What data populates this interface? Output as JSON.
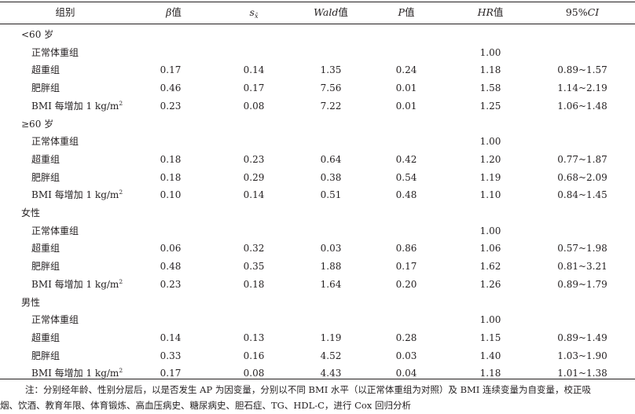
{
  "header": {
    "group": "组别",
    "beta_sym": "β",
    "beta_suffix": "值",
    "sx_main": "s",
    "sx_sub": "x̄",
    "wald_sym": "Wald",
    "wald_suffix": "值",
    "p_sym": "P",
    "p_suffix": "值",
    "hr_sym": "HR",
    "hr_suffix": "值",
    "ci_prefix": "95%",
    "ci_sym": "CI"
  },
  "sections": [
    {
      "title": "<60 岁",
      "rows": [
        {
          "label": "正常体重组",
          "beta": "",
          "sx": "",
          "wald": "",
          "p": "",
          "hr": "1.00",
          "ci": ""
        },
        {
          "label": "超重组",
          "beta": "0.17",
          "sx": "0.14",
          "wald": "1.35",
          "p": "0.24",
          "hr": "1.18",
          "ci": "0.89~1.57"
        },
        {
          "label": "肥胖组",
          "beta": "0.46",
          "sx": "0.17",
          "wald": "7.56",
          "p": "0.01",
          "hr": "1.58",
          "ci": "1.14~2.19"
        },
        {
          "label": "BMI 每增加 1 kg/m",
          "sup": "2",
          "beta": "0.23",
          "sx": "0.08",
          "wald": "7.22",
          "p": "0.01",
          "hr": "1.25",
          "ci": "1.06~1.48"
        }
      ]
    },
    {
      "title": "≥60 岁",
      "rows": [
        {
          "label": "正常体重组",
          "beta": "",
          "sx": "",
          "wald": "",
          "p": "",
          "hr": "1.00",
          "ci": ""
        },
        {
          "label": "超重组",
          "beta": "0.18",
          "sx": "0.23",
          "wald": "0.64",
          "p": "0.42",
          "hr": "1.20",
          "ci": "0.77~1.87"
        },
        {
          "label": "肥胖组",
          "beta": "0.18",
          "sx": "0.29",
          "wald": "0.38",
          "p": "0.54",
          "hr": "1.19",
          "ci": "0.68~2.09"
        },
        {
          "label": "BMI 每增加 1 kg/m",
          "sup": "2",
          "beta": "0.10",
          "sx": "0.14",
          "wald": "0.51",
          "p": "0.48",
          "hr": "1.10",
          "ci": "0.84~1.45"
        }
      ]
    },
    {
      "title": "女性",
      "rows": [
        {
          "label": "正常体重组",
          "beta": "",
          "sx": "",
          "wald": "",
          "p": "",
          "hr": "1.00",
          "ci": ""
        },
        {
          "label": "超重组",
          "beta": "0.06",
          "sx": "0.32",
          "wald": "0.03",
          "p": "0.86",
          "hr": "1.06",
          "ci": "0.57~1.98"
        },
        {
          "label": "肥胖组",
          "beta": "0.48",
          "sx": "0.35",
          "wald": "1.88",
          "p": "0.17",
          "hr": "1.62",
          "ci": "0.81~3.21"
        },
        {
          "label": "BMI 每增加 1 kg/m",
          "sup": "2",
          "beta": "0.23",
          "sx": "0.18",
          "wald": "1.64",
          "p": "0.20",
          "hr": "1.26",
          "ci": "0.89~1.79"
        }
      ]
    },
    {
      "title": "男性",
      "rows": [
        {
          "label": "正常体重组",
          "beta": "",
          "sx": "",
          "wald": "",
          "p": "",
          "hr": "1.00",
          "ci": ""
        },
        {
          "label": "超重组",
          "beta": "0.14",
          "sx": "0.13",
          "wald": "1.19",
          "p": "0.28",
          "hr": "1.15",
          "ci": "0.89~1.49"
        },
        {
          "label": "肥胖组",
          "beta": "0.33",
          "sx": "0.16",
          "wald": "4.52",
          "p": "0.03",
          "hr": "1.40",
          "ci": "1.03~1.90"
        },
        {
          "label": "BMI 每增加 1 kg/m",
          "sup": "2",
          "beta": "0.17",
          "sx": "0.08",
          "wald": "4.43",
          "p": "0.04",
          "hr": "1.18",
          "ci": "1.01~1.38"
        }
      ]
    }
  ],
  "note": {
    "line1": "注：分别经年龄、性别分层后，以是否发生 AP 为因变量，分别以不同 BMI 水平（以正常体重组为对照）及 BMI 连续变量为自变量，校正吸",
    "line2": "烟、饮酒、教育年限、体育锻炼、高血压病史、糖尿病史、胆石症、TG、HDL-C，进行 Cox 回归分析"
  }
}
